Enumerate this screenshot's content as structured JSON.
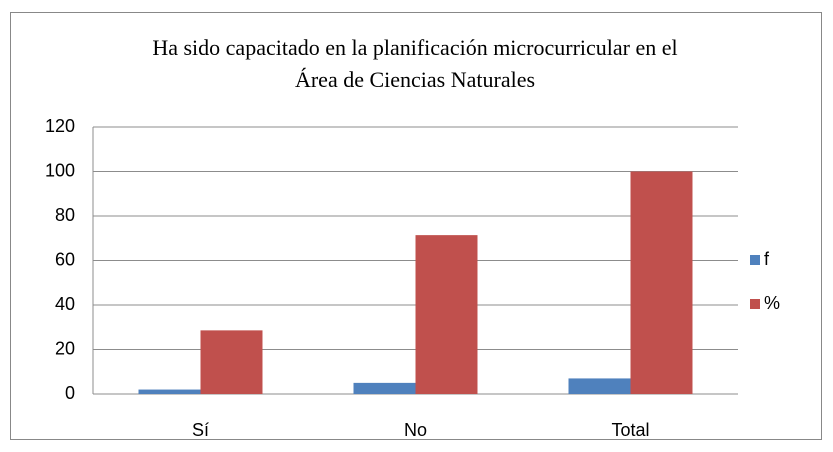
{
  "chart_data": {
    "type": "bar",
    "title": [
      "Ha sido capacitado en la planificación microcurricular en el",
      "Área de Ciencias Naturales"
    ],
    "categories": [
      "Sí",
      "No",
      "Total"
    ],
    "series": [
      {
        "name": "f",
        "color": "#4f81bd",
        "values": [
          2,
          5,
          7
        ]
      },
      {
        "name": "%",
        "color": "#c0504d",
        "values": [
          28.6,
          71.4,
          100
        ]
      }
    ],
    "ylim": [
      0,
      120
    ],
    "yticks": [
      0,
      20,
      40,
      60,
      80,
      100,
      120
    ],
    "grid": true,
    "legend": "right"
  }
}
